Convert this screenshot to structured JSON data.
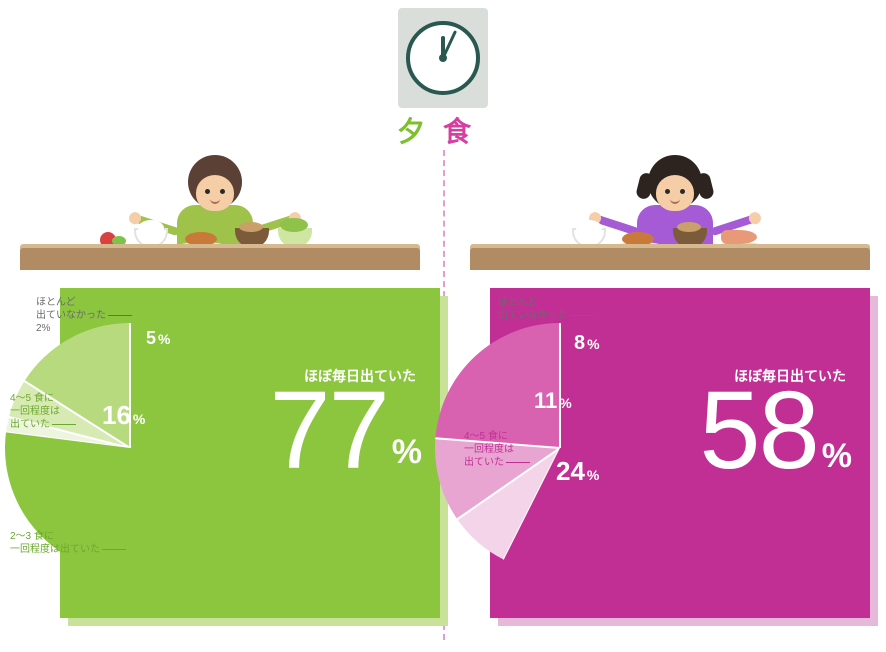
{
  "title": {
    "char1": "夕",
    "char2": "食",
    "color1": "#7dbf2e",
    "color2": "#d63ea0"
  },
  "clock": {
    "hour_angle": 0,
    "minute_angle": 25,
    "border": "#28584f",
    "box": "#d9dedb"
  },
  "labels": {
    "almost_daily": "ほぼ毎日出ていた",
    "two_three": "2〜3 食に\n一回程度は出ていた",
    "four_five": "4〜5 食に\n一回程度は\n出ていた",
    "rarely": "ほとんど\n出ていなかった"
  },
  "left": {
    "type": "pie",
    "bg": "#8cc63f",
    "shadow": "#c9e29a",
    "callout_color": "#6da82e",
    "slices": [
      {
        "key": "almost_daily",
        "value": 77,
        "color": "#8cc63f"
      },
      {
        "key": "two_three",
        "value": 16,
        "color": "#b7da7e"
      },
      {
        "key": "four_five",
        "value": 5,
        "color": "#d7eab4"
      },
      {
        "key": "rarely",
        "value": 2,
        "color": "#eef5df"
      }
    ],
    "rarely_pct_text": "2%"
  },
  "right": {
    "type": "pie",
    "bg": "#c12f94",
    "shadow": "#e6b8da",
    "callout_color": "#c12f94",
    "slices": [
      {
        "key": "almost_daily",
        "value": 58,
        "color": "#c12f94"
      },
      {
        "key": "two_three",
        "value": 24,
        "color": "#d862b0"
      },
      {
        "key": "four_five",
        "value": 11,
        "color": "#e9a5d2"
      },
      {
        "key": "rarely",
        "value": 8,
        "color": "#f3d4e9"
      }
    ]
  },
  "percent_sign": "%"
}
